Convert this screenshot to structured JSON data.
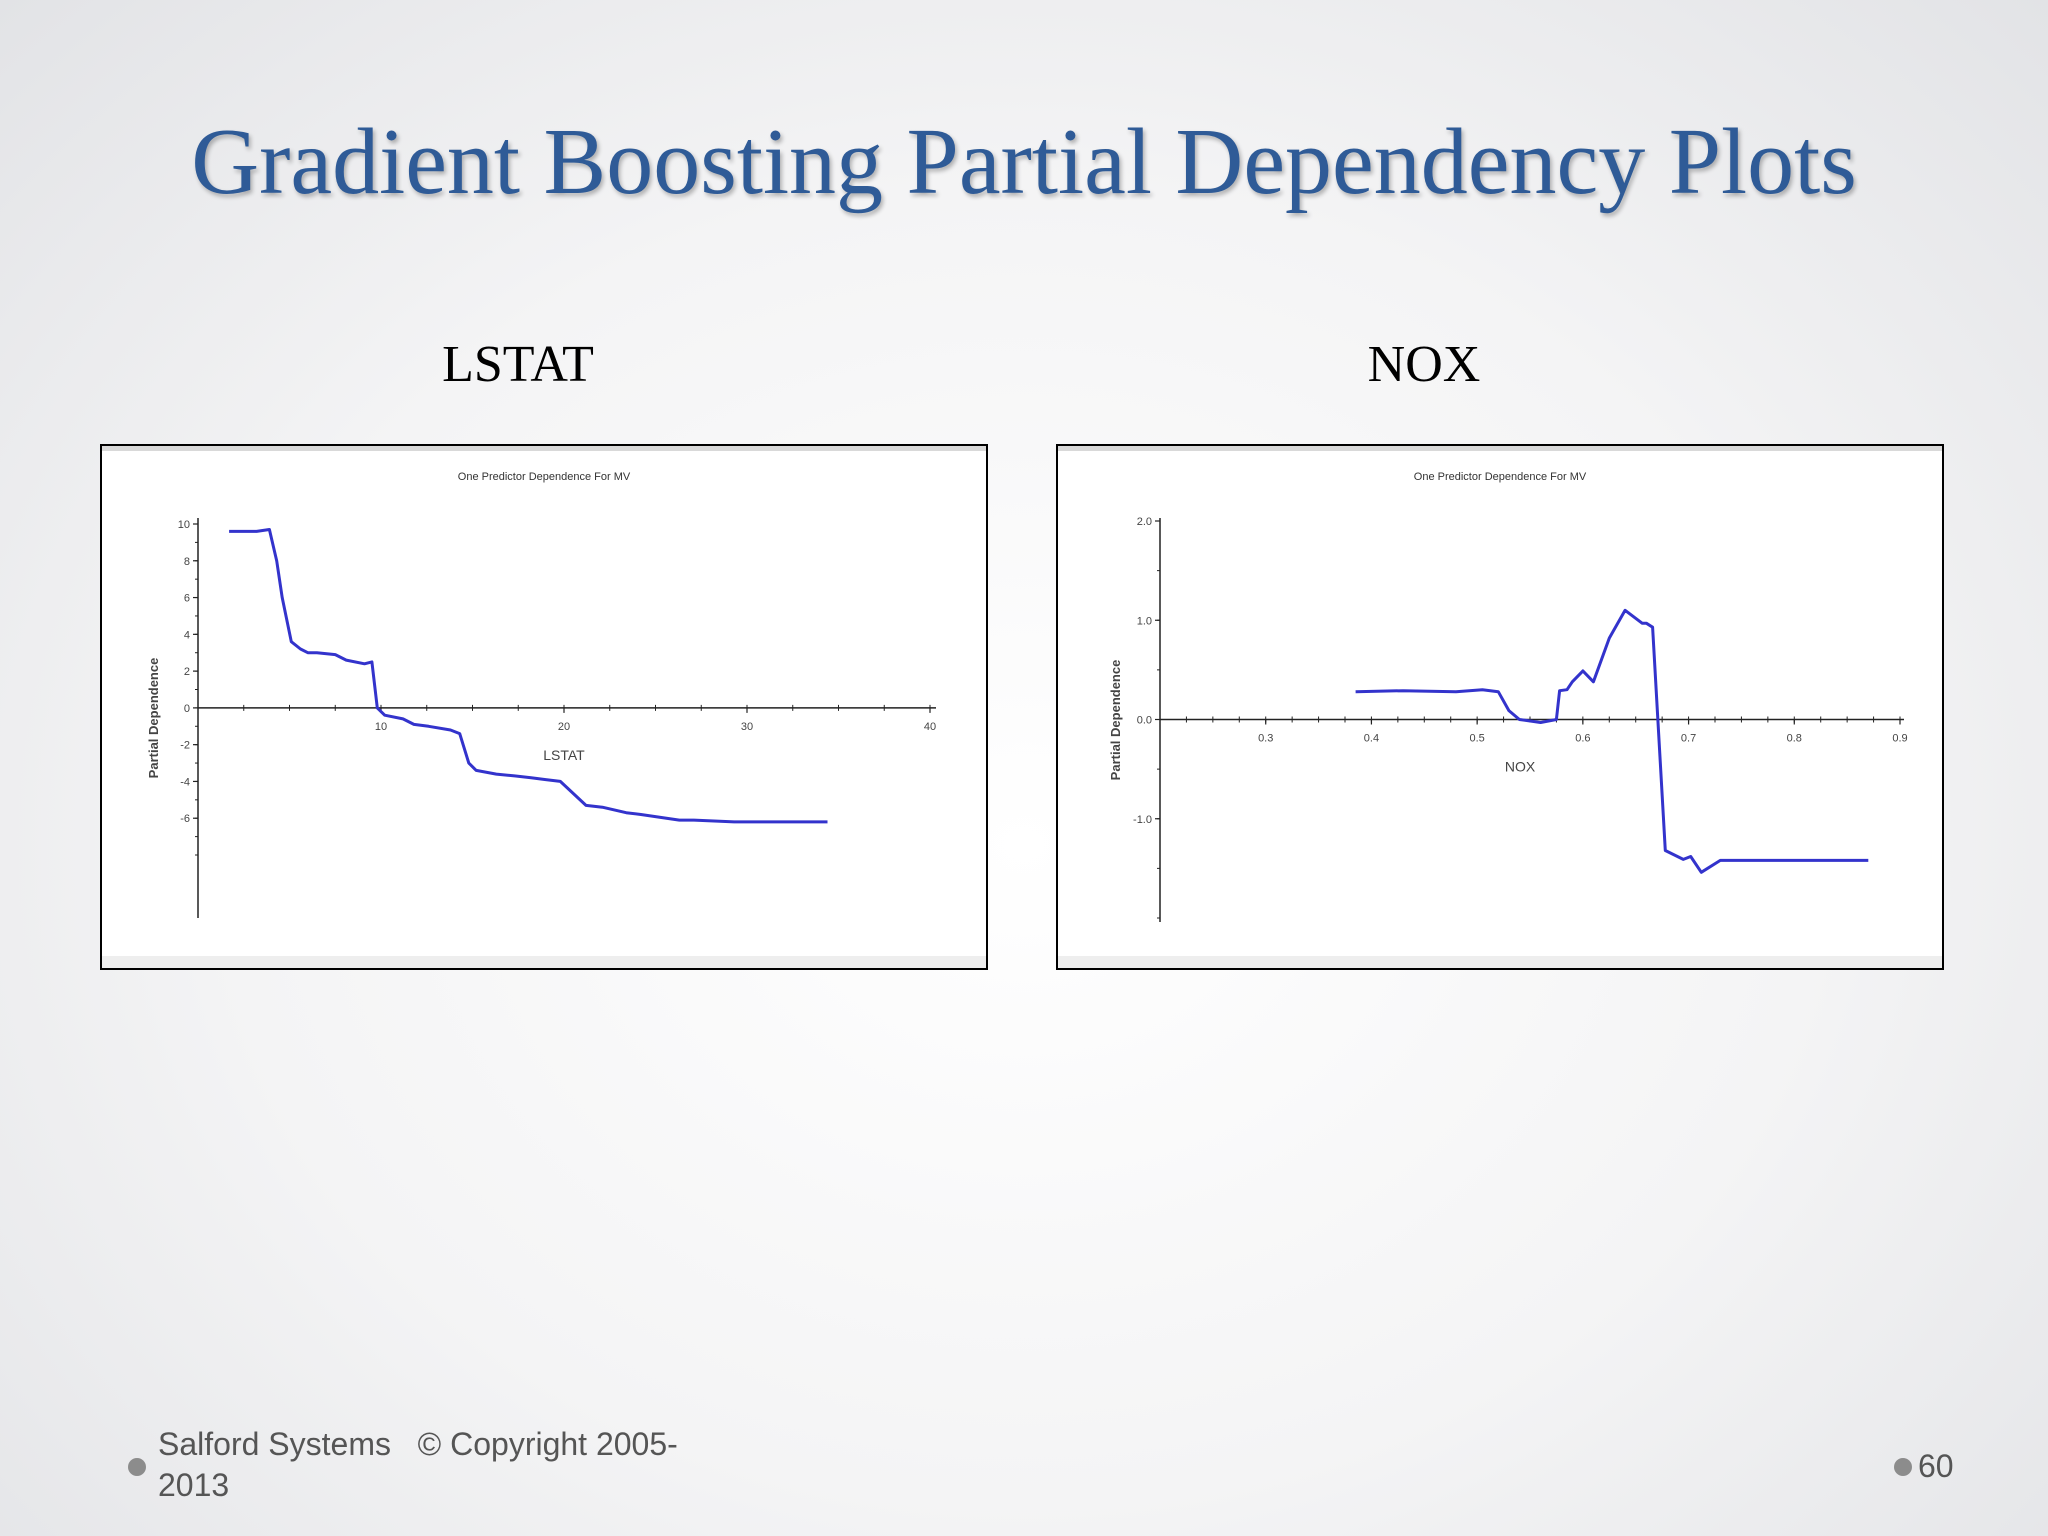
{
  "slide": {
    "title": "Gradient Boosting Partial Dependency Plots",
    "footer_line1": "Salford Systems   © Copyright 2005-",
    "footer_line2": "2013",
    "page_number": "60"
  },
  "colors": {
    "title": "#2f5b97",
    "line": "#3333cc",
    "axis": "#222222"
  },
  "chart_data": [
    {
      "type": "line",
      "caption": "LSTAT",
      "title": "One Predictor Dependence For MV",
      "xlabel": "LSTAT",
      "ylabel": "Partial Dependence",
      "xlim": [
        0,
        40
      ],
      "ylim": [
        -8,
        10
      ],
      "xticks": [
        10,
        20,
        30,
        40
      ],
      "yticks": [
        10,
        8,
        6,
        4,
        2,
        0,
        -2,
        -4,
        -6
      ],
      "x": [
        1.7,
        3.2,
        3.9,
        4.3,
        4.6,
        5.1,
        5.6,
        6.0,
        6.5,
        7.5,
        8.1,
        9.1,
        9.5,
        9.8,
        10.2,
        11.2,
        11.8,
        12.6,
        13.8,
        14.3,
        14.8,
        15.2,
        16.3,
        17.3,
        18.2,
        19.0,
        19.8,
        21.2,
        22.1,
        23.4,
        24.2,
        26.3,
        27.1,
        29.3,
        34.4
      ],
      "y": [
        9.6,
        9.6,
        9.7,
        8.0,
        6.0,
        3.6,
        3.2,
        3.0,
        3.0,
        2.9,
        2.6,
        2.4,
        2.5,
        0.0,
        -0.4,
        -0.6,
        -0.9,
        -1.0,
        -1.2,
        -1.4,
        -3.0,
        -3.4,
        -3.6,
        -3.7,
        -3.8,
        -3.9,
        -4.0,
        -5.3,
        -5.4,
        -5.7,
        -5.8,
        -6.1,
        -6.1,
        -6.2,
        -6.2
      ]
    },
    {
      "type": "line",
      "caption": "NOX",
      "title": "One Predictor Dependence For MV",
      "xlabel": "NOX",
      "ylabel": "Partial Dependence",
      "xlim": [
        0.2,
        0.9
      ],
      "ylim": [
        -2.0,
        2.0
      ],
      "xticks": [
        "0.3",
        "0.4",
        "0.5",
        "0.6",
        "0.7",
        "0.8",
        "0.9"
      ],
      "yticks": [
        "2.0",
        "1.0",
        "0.0",
        "-1.0"
      ],
      "ytick_values": [
        2.0,
        1.0,
        0.0,
        -1.0
      ],
      "x": [
        0.385,
        0.43,
        0.48,
        0.505,
        0.52,
        0.53,
        0.54,
        0.56,
        0.575,
        0.578,
        0.585,
        0.59,
        0.6,
        0.61,
        0.625,
        0.64,
        0.656,
        0.66,
        0.666,
        0.678,
        0.695,
        0.702,
        0.712,
        0.73,
        0.8,
        0.87
      ],
      "y": [
        0.28,
        0.29,
        0.28,
        0.3,
        0.28,
        0.09,
        0.0,
        -0.03,
        0.0,
        0.29,
        0.3,
        0.38,
        0.49,
        0.38,
        0.82,
        1.1,
        0.97,
        0.97,
        0.93,
        -1.32,
        -1.41,
        -1.38,
        -1.54,
        -1.42,
        -1.42,
        -1.42
      ]
    }
  ]
}
